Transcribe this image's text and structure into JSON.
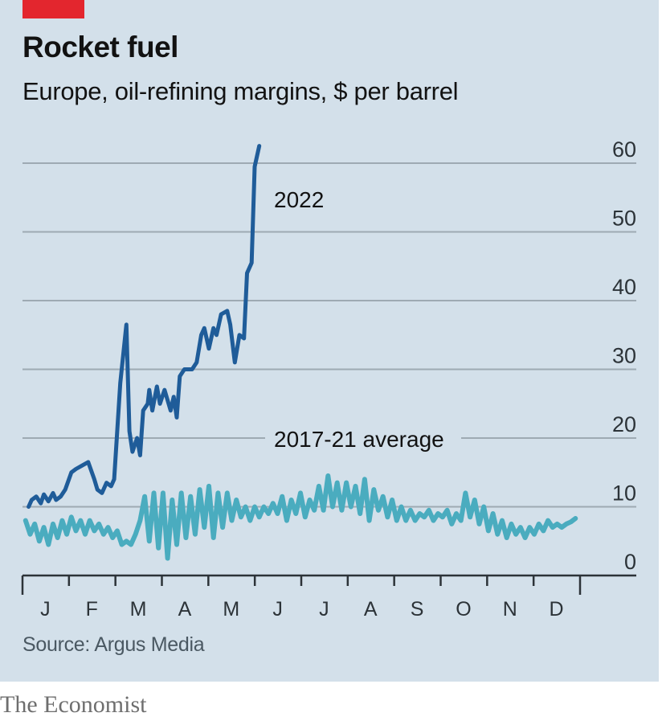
{
  "header": {
    "title": "Rocket fuel",
    "subtitle": "Europe, oil-refining margins, $ per barrel"
  },
  "footer": {
    "source": "Source: Argus Media",
    "brand": "The Economist"
  },
  "colors": {
    "background": "#d3e0ea",
    "accent_red": "#e3262e",
    "series_2022": "#1f5c99",
    "series_avg": "#4aacbf",
    "gridline": "#9eaab3",
    "axis": "#2c3338"
  },
  "chart_data": {
    "type": "line",
    "title": "Rocket fuel",
    "subtitle": "Europe, oil-refining margins, $ per barrel",
    "xlabel": "",
    "ylabel": "$ per barrel",
    "ylim": [
      0,
      60
    ],
    "xlim_days": [
      0,
      365
    ],
    "yticks": [
      0,
      10,
      20,
      30,
      40,
      50,
      60
    ],
    "y_axis_side": "right",
    "grid": true,
    "x_tick_labels": [
      "J",
      "F",
      "M",
      "A",
      "M",
      "J",
      "J",
      "A",
      "S",
      "O",
      "N",
      "D"
    ],
    "source": "Source: Argus Media",
    "series": [
      {
        "name": "2022",
        "label": "2022",
        "x_days": [
          4,
          6,
          9,
          12,
          14,
          17,
          20,
          22,
          25,
          28,
          32,
          35,
          39,
          43,
          47,
          49,
          52,
          55,
          58,
          60,
          64,
          68,
          70,
          72,
          75,
          77,
          79,
          82,
          83,
          85,
          88,
          90,
          93,
          97,
          99,
          101,
          103,
          106,
          109,
          111,
          114,
          117,
          119,
          122,
          125,
          127,
          130,
          134,
          136,
          139,
          142,
          145,
          147,
          150,
          152,
          155
        ],
        "values": [
          10,
          11,
          11.5,
          10.5,
          11.8,
          10.8,
          12,
          11,
          11.5,
          12.5,
          15,
          15.5,
          16,
          16.5,
          14,
          12.5,
          12,
          13.5,
          13,
          14,
          28,
          36.5,
          21,
          18,
          20,
          17.5,
          24,
          25,
          27,
          24,
          27.5,
          25,
          27,
          24,
          26,
          23,
          29,
          30,
          30,
          30,
          31,
          35,
          36,
          33,
          36,
          35,
          38,
          38.5,
          36.5,
          31,
          35,
          34.5,
          44,
          45.5,
          59.5,
          62.5
        ]
      },
      {
        "name": "2017-21 average",
        "label": "2017-21 average",
        "x_days": [
          2,
          5,
          8,
          11,
          14,
          17,
          20,
          23,
          26,
          29,
          32,
          35,
          38,
          41,
          44,
          47,
          50,
          53,
          56,
          59,
          62,
          65,
          68,
          71,
          74,
          77,
          80,
          83,
          86,
          89,
          92,
          95,
          98,
          101,
          104,
          107,
          110,
          113,
          116,
          119,
          122,
          125,
          128,
          131,
          134,
          137,
          140,
          143,
          146,
          149,
          152,
          155,
          158,
          161,
          164,
          167,
          170,
          173,
          176,
          179,
          182,
          185,
          188,
          191,
          194,
          197,
          200,
          203,
          206,
          209,
          212,
          215,
          218,
          221,
          224,
          227,
          230,
          233,
          236,
          239,
          242,
          245,
          248,
          251,
          254,
          257,
          260,
          263,
          266,
          269,
          272,
          275,
          278,
          281,
          284,
          287,
          290,
          293,
          296,
          299,
          302,
          305,
          308,
          311,
          314,
          317,
          320,
          323,
          326,
          329,
          332,
          335,
          338,
          341,
          344,
          347,
          350,
          353,
          356,
          359,
          362
        ],
        "values": [
          8,
          6,
          7.5,
          5,
          7,
          4.5,
          7.5,
          5.5,
          8,
          6,
          8.5,
          6.5,
          8,
          6,
          8,
          6.5,
          7.5,
          6,
          7,
          5.5,
          6.5,
          4.5,
          5,
          4.5,
          6,
          8,
          11.5,
          5,
          12,
          4,
          12,
          2.5,
          11,
          4.5,
          12,
          5.5,
          11.5,
          6,
          12.5,
          7,
          13,
          5.5,
          12,
          7,
          12,
          8,
          11,
          8.5,
          10,
          8,
          10,
          8.5,
          10,
          9,
          10.5,
          9,
          11.5,
          8,
          11,
          9,
          12,
          8.5,
          11,
          9.5,
          13,
          9.5,
          14.5,
          10,
          13.5,
          9.5,
          13.5,
          10,
          13,
          9,
          14,
          8,
          12.5,
          9.5,
          11.5,
          8.5,
          11,
          8,
          10,
          8,
          9.5,
          8,
          9,
          8.5,
          9.5,
          8,
          9,
          8.5,
          9.5,
          7.5,
          9,
          8,
          12,
          8.5,
          11,
          7.5,
          10,
          6.5,
          9,
          6,
          8,
          5.5,
          7.5,
          6,
          7,
          5.5,
          7,
          6,
          7.5,
          6.5,
          8,
          7,
          7.5,
          7,
          7.5,
          7.8,
          8.3
        ]
      }
    ],
    "annotations": [
      {
        "text": "2022",
        "series": "2022"
      },
      {
        "text": "2017-21 average",
        "series": "2017-21 average"
      }
    ]
  }
}
